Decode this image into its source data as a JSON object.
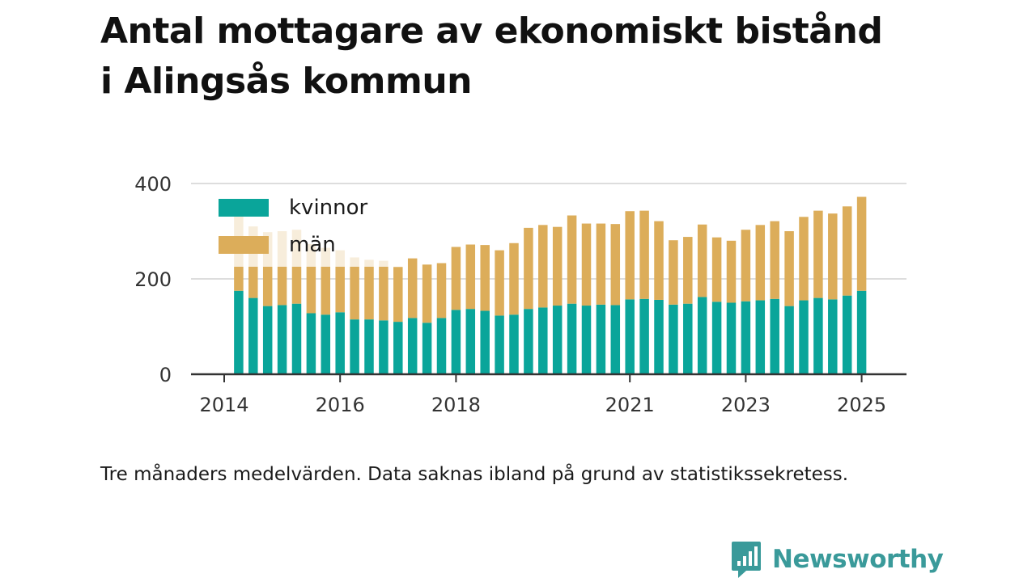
{
  "title_lines": [
    "Antal mottagare av ekonomiskt bistånd",
    "i Alingsås kommun"
  ],
  "caption": "Tre månaders medelvärden. Data saknas ibland på grund av statistikssekretess.",
  "brand": {
    "name": "Newsworthy",
    "icon": "newsworthy-logo-icon",
    "color": "#3a9a9a"
  },
  "colors": {
    "kvinnor": "#0aa59a",
    "man": "#dcad5a",
    "grid": "#dddddd",
    "axis": "#333333"
  },
  "chart_data": {
    "type": "bar",
    "stacked": true,
    "title": "Antal mottagare av ekonomiskt bistånd i Alingsås kommun",
    "xlabel": "",
    "ylabel": "",
    "ylim": [
      0,
      400
    ],
    "yticks": [
      0,
      200,
      400
    ],
    "xlim": [
      2014.0,
      2025.5
    ],
    "xticks": [
      2014,
      2016,
      2018,
      2021,
      2023,
      2025
    ],
    "grid": true,
    "legend": {
      "position": "top-left",
      "entries": [
        "kvinnor",
        "män"
      ]
    },
    "x": [
      2014.25,
      2014.5,
      2014.75,
      2015.0,
      2015.25,
      2015.5,
      2015.75,
      2016.0,
      2016.25,
      2016.5,
      2016.75,
      2017.0,
      2017.25,
      2017.5,
      2017.75,
      2018.0,
      2018.25,
      2018.5,
      2018.75,
      2019.0,
      2019.25,
      2019.5,
      2019.75,
      2020.0,
      2020.25,
      2020.5,
      2020.75,
      2021.0,
      2021.25,
      2021.5,
      2021.75,
      2022.0,
      2022.25,
      2022.5,
      2022.75,
      2023.0,
      2023.25,
      2023.5,
      2023.75,
      2024.0,
      2024.25,
      2024.5,
      2024.75,
      2025.0
    ],
    "series": [
      {
        "name": "kvinnor",
        "values": [
          175,
          160,
          143,
          145,
          148,
          128,
          125,
          130,
          115,
          115,
          113,
          110,
          118,
          108,
          118,
          135,
          137,
          133,
          123,
          125,
          137,
          140,
          144,
          148,
          144,
          146,
          145,
          157,
          158,
          156,
          146,
          148,
          162,
          152,
          150,
          153,
          155,
          158,
          143,
          155,
          160,
          157,
          165,
          175
        ]
      },
      {
        "name": "män",
        "values": [
          160,
          150,
          155,
          155,
          155,
          145,
          140,
          130,
          130,
          125,
          125,
          115,
          125,
          122,
          115,
          132,
          135,
          138,
          137,
          150,
          170,
          173,
          165,
          185,
          172,
          170,
          170,
          185,
          185,
          165,
          135,
          140,
          152,
          135,
          130,
          150,
          158,
          163,
          157,
          175,
          183,
          180,
          187,
          197
        ]
      }
    ]
  }
}
